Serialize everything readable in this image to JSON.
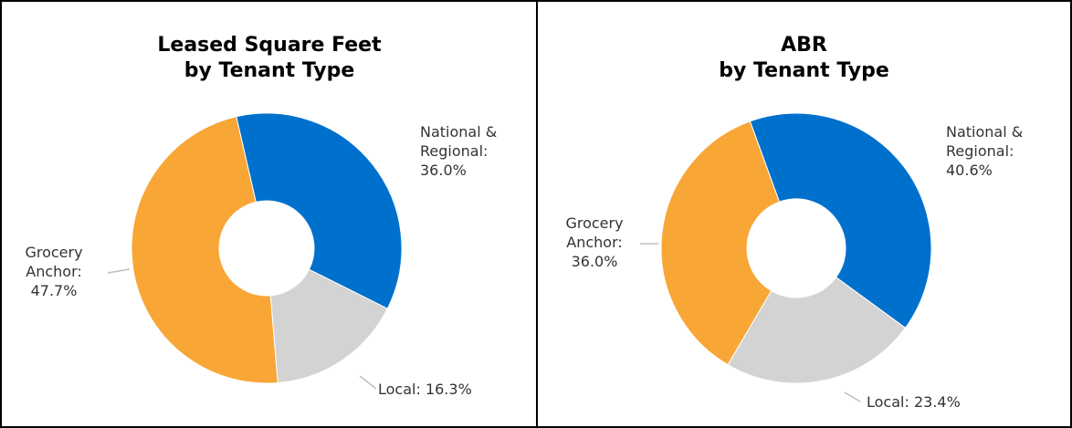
{
  "chart_data": [
    {
      "type": "pie",
      "title": [
        "Leased Square Feet",
        "by Tenant Type"
      ],
      "slices": [
        {
          "label": "National & Regional:",
          "value": 36.0,
          "text": "36.0%",
          "color": "#0070CD"
        },
        {
          "label": "Local:",
          "value": 16.3,
          "text": "16.3%",
          "color": "#D3D3D3"
        },
        {
          "label": "Grocery Anchor:",
          "value": 47.7,
          "text": "47.7%",
          "color": "#F8A636"
        }
      ]
    },
    {
      "type": "pie",
      "title": [
        "ABR",
        "by Tenant Type"
      ],
      "slices": [
        {
          "label": "National & Regional:",
          "value": 40.6,
          "text": "40.6%",
          "color": "#0070CD"
        },
        {
          "label": "Local:",
          "value": 23.4,
          "text": "23.4%",
          "color": "#D3D3D3"
        },
        {
          "label": "Grocery Anchor:",
          "value": 36.0,
          "text": "36.0%",
          "color": "#F8A636"
        }
      ]
    }
  ]
}
